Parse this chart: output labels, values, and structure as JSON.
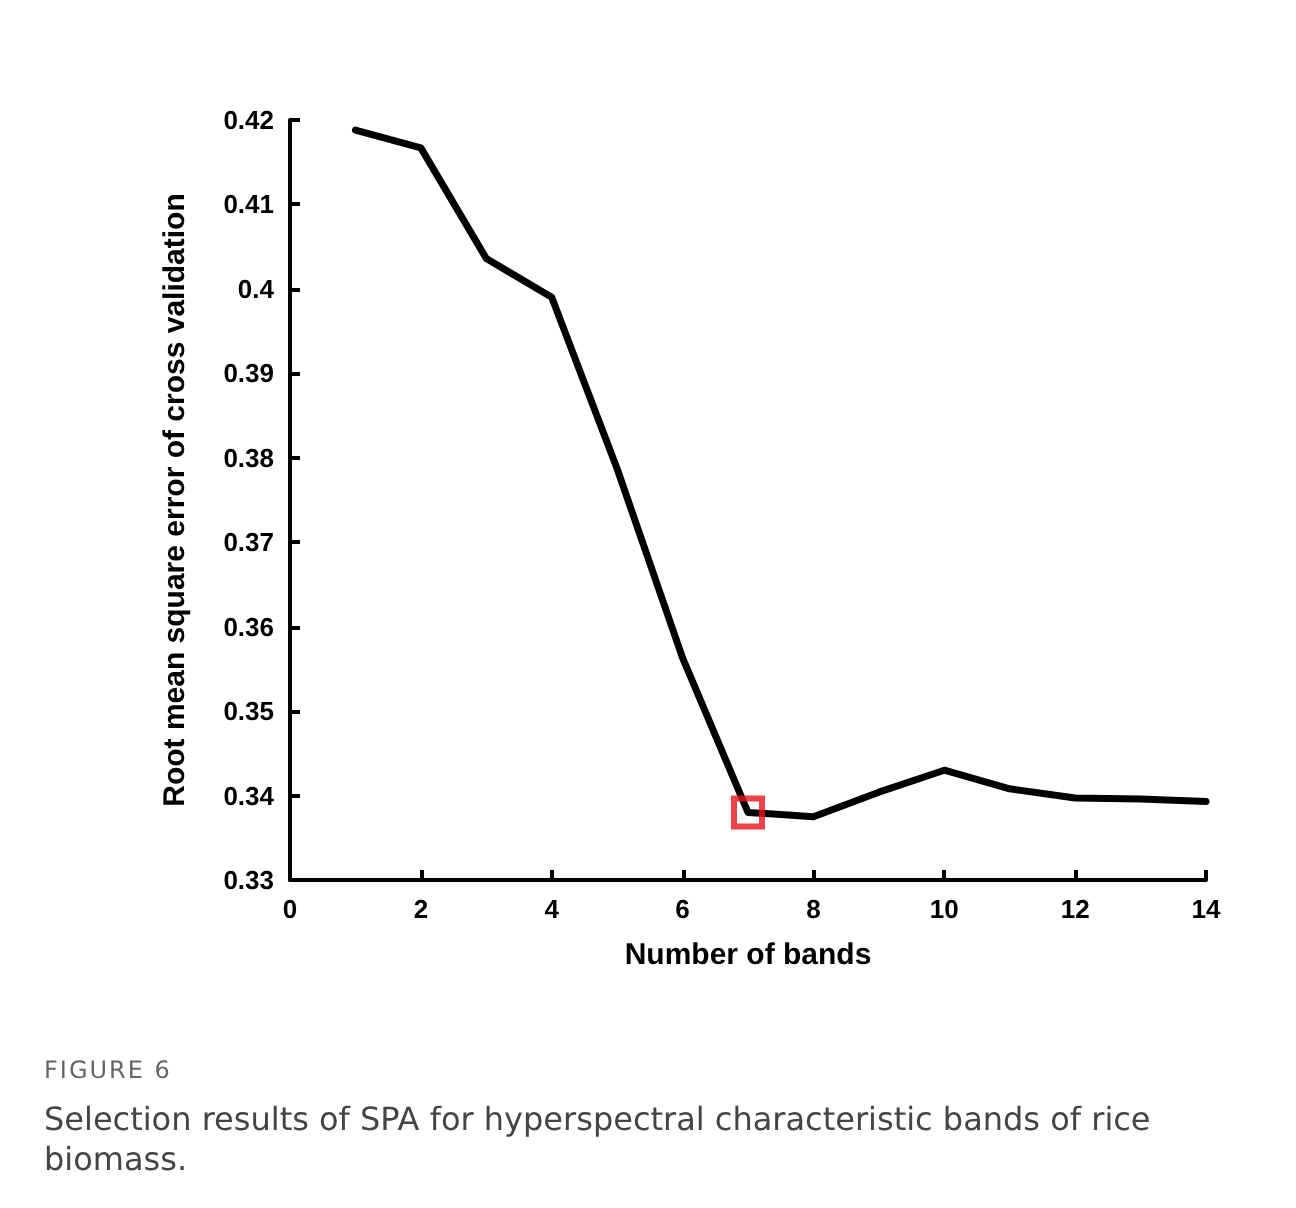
{
  "chart_data": {
    "type": "line",
    "xlabel": "Number of bands",
    "ylabel": "Root mean square error of cross validation",
    "x": [
      1,
      2,
      3,
      4,
      5,
      6,
      7,
      8,
      9,
      10,
      11,
      12,
      13,
      14
    ],
    "series": [
      {
        "color": "#000000",
        "marker": "none",
        "line_style": "solid",
        "values": [
          0.4188,
          0.4167,
          0.4036,
          0.399,
          0.3787,
          0.3563,
          0.338,
          0.3375,
          0.3404,
          0.343,
          0.3408,
          0.3397,
          0.3396,
          0.3393
        ]
      },
      {
        "type": "scatter",
        "color": "#e8141c",
        "marker": "square",
        "x": [
          7
        ],
        "values": [
          0.338
        ]
      }
    ],
    "xlim": [
      0,
      14
    ],
    "xticks": [
      0,
      2,
      4,
      6,
      8,
      10,
      12,
      14
    ],
    "ylim": [
      0.33,
      0.42
    ],
    "yticks": [
      0.33,
      0.34,
      0.35,
      0.36,
      0.37,
      0.38,
      0.39,
      0.4,
      0.41,
      0.42
    ],
    "grid": false,
    "annotations": [
      "FIGURE 6",
      "Selection results of SPA for hyperspectral characteristic bands of rice biomass."
    ]
  }
}
